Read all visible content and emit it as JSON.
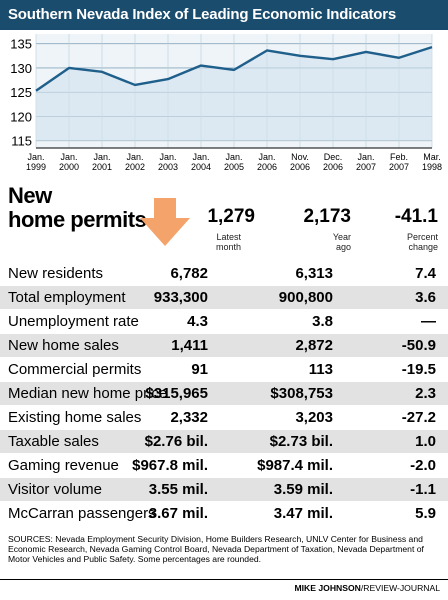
{
  "header": {
    "title": "Southern Nevada Index of Leading Economic Indicators"
  },
  "chart_data": {
    "type": "line",
    "title": "Southern Nevada Index of Leading Economic Indicators",
    "categories": [
      [
        "Jan.",
        "1999"
      ],
      [
        "Jan.",
        "2000"
      ],
      [
        "Jan.",
        "2001"
      ],
      [
        "Jan.",
        "2002"
      ],
      [
        "Jan.",
        "2003"
      ],
      [
        "Jan.",
        "2004"
      ],
      [
        "Jan.",
        "2005"
      ],
      [
        "Jan.",
        "2006"
      ],
      [
        "Nov.",
        "2006"
      ],
      [
        "Dec.",
        "2006"
      ],
      [
        "Jan.",
        "2007"
      ],
      [
        "Feb.",
        "2007"
      ],
      [
        "Mar.",
        "1998"
      ]
    ],
    "values": [
      125.3,
      130.0,
      129.2,
      126.5,
      127.7,
      130.5,
      129.6,
      133.6,
      132.5,
      131.8,
      133.3,
      132.1,
      134.3
    ],
    "yticks": [
      115,
      120,
      125,
      130,
      135
    ],
    "ylim": [
      113.5,
      137
    ],
    "grid": true,
    "line_color": "#1f5f8b",
    "band_color": "#cfe0ec"
  },
  "permits": {
    "title_line1": "New",
    "title_line2": "home permits",
    "latest": "1,279",
    "year_ago": "2,173",
    "pct": "-41.1",
    "latest_label_1": "Latest",
    "latest_label_2": "month",
    "yearago_label_1": "Year",
    "yearago_label_2": "ago",
    "pct_label_1": "Percent",
    "pct_label_2": "change",
    "arrow_color": "#f4a46b"
  },
  "table": {
    "rows": [
      {
        "label": "New residents",
        "latest": "6,782",
        "year_ago": "6,313",
        "pct": "7.4"
      },
      {
        "label": "Total employment",
        "latest": "933,300",
        "year_ago": "900,800",
        "pct": "3.6"
      },
      {
        "label": "Unemployment rate",
        "latest": "4.3",
        "year_ago": "3.8",
        "pct": "—"
      },
      {
        "label": "New home sales",
        "latest": "1,411",
        "year_ago": "2,872",
        "pct": "-50.9"
      },
      {
        "label": "Commercial permits",
        "latest": "91",
        "year_ago": "113",
        "pct": "-19.5"
      },
      {
        "label": "Median new home price",
        "latest": "$315,965",
        "year_ago": "$308,753",
        "pct": "2.3"
      },
      {
        "label": "Existing home sales",
        "latest": "2,332",
        "year_ago": "3,203",
        "pct": "-27.2"
      },
      {
        "label": "Taxable sales",
        "latest": "$2.76 bil.",
        "year_ago": "$2.73 bil.",
        "pct": "1.0"
      },
      {
        "label": "Gaming revenue",
        "latest": "$967.8 mil.",
        "year_ago": "$987.4 mil.",
        "pct": "-2.0"
      },
      {
        "label": "Visitor volume",
        "latest": "3.55 mil.",
        "year_ago": "3.59 mil.",
        "pct": "-1.1"
      },
      {
        "label": "McCarran passengers",
        "latest": "3.67 mil.",
        "year_ago": "3.47 mil.",
        "pct": "5.9"
      }
    ]
  },
  "footer": {
    "sources": "SOURCES: Nevada Employment Security Division, Home Builders Research, UNLV Center for Business and Economic Research, Nevada Gaming Control Board, Nevada Department of Taxation, Nevada Department of Motor Vehicles and Public Safety. Some percentages are rounded.",
    "credit_name": "MIKE JOHNSON",
    "credit_org": "/REVIEW-JOURNAL"
  }
}
